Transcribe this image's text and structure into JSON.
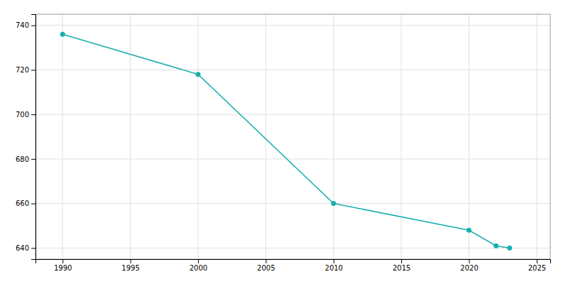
{
  "chart_data": {
    "type": "line",
    "x": [
      1990,
      2000,
      2010,
      2020,
      2022,
      2023
    ],
    "values": [
      736,
      718,
      660,
      648,
      641,
      640
    ],
    "color": "#19AFAF",
    "marker": "circle",
    "xlim": [
      1988,
      2026
    ],
    "ylim": [
      635,
      745
    ],
    "xticks": [
      1990,
      1995,
      2000,
      2005,
      2010,
      2015,
      2020,
      2025
    ],
    "yticks": [
      640,
      660,
      680,
      700,
      720,
      740
    ],
    "grid": true
  }
}
